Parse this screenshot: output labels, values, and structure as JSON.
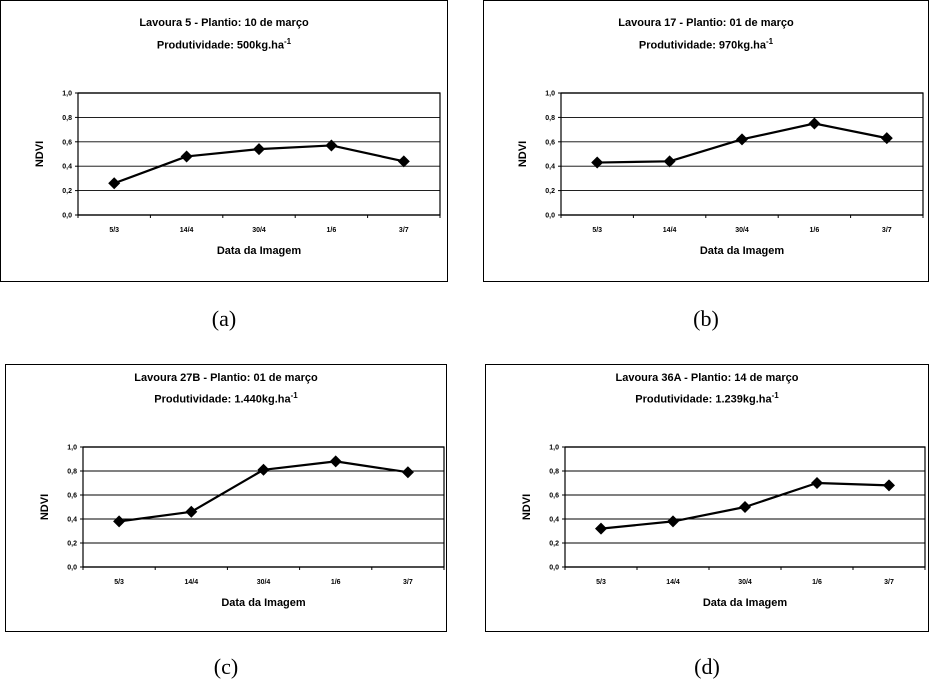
{
  "chart_data": [
    {
      "type": "line",
      "title": "Lavoura 5 - Plantio: 10 de março",
      "subtitle_prefix": "Produtividade: 500kg.ha",
      "subtitle_superscript": "-1",
      "caption": "(a)",
      "xlabel": "Data da Imagem",
      "ylabel": "NDVI",
      "categories": [
        "5/3",
        "14/4",
        "30/4",
        "1/6",
        "3/7"
      ],
      "yticks": [
        "0,0",
        "0,2",
        "0,4",
        "0,6",
        "0,8",
        "1,0"
      ],
      "ylim": [
        0,
        1
      ],
      "grid": true,
      "series": [
        {
          "values": [
            0.26,
            0.48,
            0.54,
            0.57,
            0.44
          ]
        }
      ]
    },
    {
      "type": "line",
      "title": "Lavoura 17 - Plantio: 01 de março",
      "subtitle_prefix": "Produtividade: 970kg.ha",
      "subtitle_superscript": "-1",
      "caption": "(b)",
      "xlabel": "Data da Imagem",
      "ylabel": "NDVI",
      "categories": [
        "5/3",
        "14/4",
        "30/4",
        "1/6",
        "3/7"
      ],
      "yticks": [
        "0,0",
        "0,2",
        "0,4",
        "0,6",
        "0,8",
        "1,0"
      ],
      "ylim": [
        0,
        1
      ],
      "grid": true,
      "series": [
        {
          "values": [
            0.43,
            0.44,
            0.62,
            0.75,
            0.63
          ]
        }
      ]
    },
    {
      "type": "line",
      "title": "Lavoura 27B - Plantio: 01 de março",
      "subtitle_prefix": "Produtividade: 1.440kg.ha",
      "subtitle_superscript": "-1",
      "caption": "(c)",
      "xlabel": "Data da Imagem",
      "ylabel": "NDVI",
      "categories": [
        "5/3",
        "14/4",
        "30/4",
        "1/6",
        "3/7"
      ],
      "yticks": [
        "0,0",
        "0,2",
        "0,4",
        "0,6",
        "0,8",
        "1,0"
      ],
      "ylim": [
        0,
        1
      ],
      "grid": true,
      "series": [
        {
          "values": [
            0.38,
            0.46,
            0.81,
            0.88,
            0.79
          ]
        }
      ]
    },
    {
      "type": "line",
      "title": "Lavoura 36A - Plantio: 14 de março",
      "subtitle_prefix": "Produtividade: 1.239kg.ha",
      "subtitle_superscript": "-1",
      "caption": "(d)",
      "xlabel": "Data da Imagem",
      "ylabel": "NDVI",
      "categories": [
        "5/3",
        "14/4",
        "30/4",
        "1/6",
        "3/7"
      ],
      "yticks": [
        "0,0",
        "0,2",
        "0,4",
        "0,6",
        "0,8",
        "1,0"
      ],
      "ylim": [
        0,
        1
      ],
      "grid": true,
      "series": [
        {
          "values": [
            0.32,
            0.38,
            0.5,
            0.7,
            0.68
          ]
        }
      ]
    }
  ]
}
